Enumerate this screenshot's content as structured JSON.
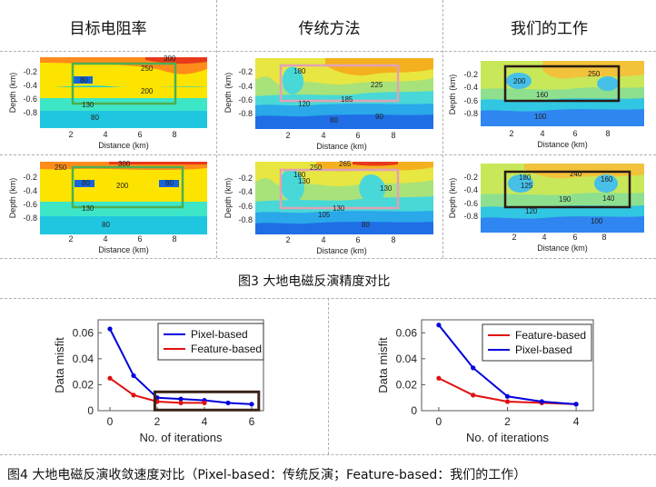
{
  "top_headers": [
    "目标电阻率",
    "传统方法",
    "我们的工作"
  ],
  "figure3_caption": "图3  大地电磁反演精度对比",
  "figure4_caption": "图4  大地电磁反演收敛速度对比（Pixel-based：传统反演；Feature-based：我们的工作）",
  "panel_axes": {
    "ylabel": "Depth (km)",
    "xlabel": "Distance (km)",
    "yticks": [
      "-0.2",
      "-0.4",
      "-0.6",
      "-0.8"
    ],
    "xticks": [
      "2",
      "4",
      "6",
      "8"
    ]
  },
  "panels": [
    {
      "contours": [
        "300",
        "250",
        "80",
        "200",
        "130",
        "80"
      ]
    },
    {
      "contours": [
        "180",
        "225",
        "185",
        "120",
        "90",
        "80"
      ]
    },
    {
      "contours": [
        "200",
        "250",
        "160",
        "100"
      ]
    },
    {
      "contours": [
        "250",
        "300",
        "80",
        "200",
        "80",
        "130",
        "80"
      ]
    },
    {
      "contours": [
        "265",
        "180",
        "250",
        "130",
        "130",
        "130",
        "105",
        "80"
      ]
    },
    {
      "contours": [
        "180",
        "125",
        "240",
        "160",
        "190",
        "140",
        "120",
        "100"
      ]
    }
  ],
  "colors": {
    "chart_blue": "#0000dd",
    "chart_red": "#e01010",
    "highlight_box": "#3a2418",
    "green_box": "#4caf50",
    "pink_box": "#e2a2b4",
    "dark_box": "#2a1a14"
  },
  "chart_data": [
    {
      "type": "line",
      "ylabel": "Data misfit",
      "xlabel": "No. of iterations",
      "xlim": [
        -0.5,
        6.5
      ],
      "ylim": [
        0,
        0.07
      ],
      "xticks": [
        0,
        2,
        4,
        6
      ],
      "yticks": [
        0,
        0.02,
        0.04,
        0.06
      ],
      "ytick_labels": [
        "0",
        "0.02",
        "0.04",
        "0.06"
      ],
      "legend_position": "top-right",
      "series": [
        {
          "name": "Pixel-based",
          "color": "#0000dd",
          "x": [
            0,
            1,
            2,
            3,
            4,
            5,
            6
          ],
          "y": [
            0.063,
            0.027,
            0.01,
            0.009,
            0.008,
            0.006,
            0.005
          ]
        },
        {
          "name": "Feature-based",
          "color": "#e01010",
          "x": [
            0,
            1,
            2,
            3,
            4
          ],
          "y": [
            0.025,
            0.012,
            0.007,
            0.006,
            0.006
          ]
        }
      ],
      "highlight_box": {
        "x": [
          1.9,
          6.3
        ],
        "y": [
          0.0005,
          0.0145
        ]
      }
    },
    {
      "type": "line",
      "ylabel": "Data misfit",
      "xlabel": "No. of iterations",
      "xlim": [
        -0.5,
        4.5
      ],
      "ylim": [
        0,
        0.07
      ],
      "xticks": [
        0,
        2,
        4
      ],
      "yticks": [
        0,
        0.02,
        0.04,
        0.06
      ],
      "ytick_labels": [
        "0",
        "0.02",
        "0.04",
        "0.06"
      ],
      "legend_position": "top-right",
      "series": [
        {
          "name": "Feature-based",
          "color": "#e01010",
          "x": [
            0,
            1,
            2,
            3,
            4
          ],
          "y": [
            0.025,
            0.012,
            0.007,
            0.006,
            0.005
          ]
        },
        {
          "name": "Pixel-based",
          "color": "#0000dd",
          "x": [
            0,
            1,
            2,
            3,
            4
          ],
          "y": [
            0.066,
            0.033,
            0.011,
            0.007,
            0.005
          ]
        }
      ]
    }
  ]
}
